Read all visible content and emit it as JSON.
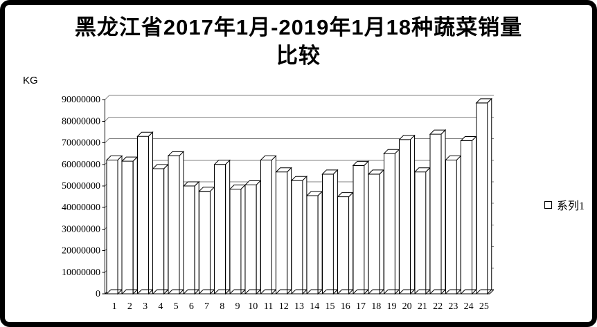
{
  "window": {
    "background_color": "#ffffff",
    "frame_color": "#000000"
  },
  "title": {
    "line1": "黑龙江省2017年1月-2019年1月18种蔬菜销量",
    "line2": "比较"
  },
  "y_axis": {
    "unit_label": "KG",
    "tick_labels": [
      "0",
      "10000000",
      "20000000",
      "30000000",
      "40000000",
      "50000000",
      "60000000",
      "70000000",
      "80000000",
      "90000000"
    ]
  },
  "legend": {
    "marker": "white-square",
    "series1_label": "系列1"
  },
  "colors": {
    "gridline": "#808080",
    "axis": "#000000",
    "bar_fill": "#ffffff",
    "bar_stroke": "#000000"
  },
  "chart_data": {
    "type": "bar",
    "style": "3d-wireframe-columns",
    "title": "黑龙江省2017年1月-2019年1月18种蔬菜销量比较",
    "xlabel": "",
    "ylabel": "KG",
    "categories": [
      "1",
      "2",
      "3",
      "4",
      "5",
      "6",
      "7",
      "8",
      "9",
      "10",
      "11",
      "12",
      "13",
      "14",
      "15",
      "16",
      "17",
      "18",
      "19",
      "20",
      "21",
      "22",
      "23",
      "24",
      "25"
    ],
    "series": [
      {
        "name": "系列1",
        "values": [
          62000000,
          61500000,
          73000000,
          58000000,
          64000000,
          50000000,
          47500000,
          60000000,
          48500000,
          50500000,
          62000000,
          56500000,
          52500000,
          45500000,
          55500000,
          45000000,
          59500000,
          55500000,
          65000000,
          71500000,
          56500000,
          74000000,
          62000000,
          71000000,
          88500000
        ]
      }
    ],
    "ylim": [
      0,
      90000000
    ],
    "ytick_step": 10000000,
    "grid": true,
    "legend_position": "right"
  }
}
